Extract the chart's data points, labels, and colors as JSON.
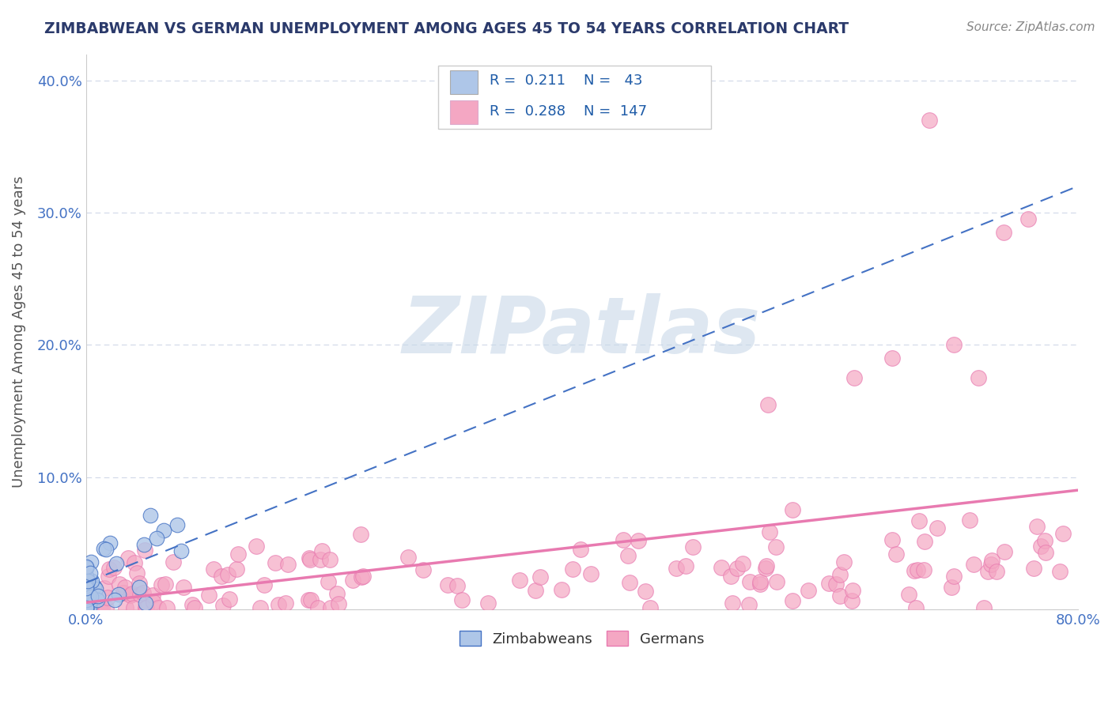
{
  "title": "ZIMBABWEAN VS GERMAN UNEMPLOYMENT AMONG AGES 45 TO 54 YEARS CORRELATION CHART",
  "source": "Source: ZipAtlas.com",
  "ylabel": "Unemployment Among Ages 45 to 54 years",
  "xlabel": "",
  "xlim": [
    0.0,
    0.8
  ],
  "ylim": [
    0.0,
    0.42
  ],
  "xticks": [
    0.0,
    0.1,
    0.2,
    0.3,
    0.4,
    0.5,
    0.6,
    0.7,
    0.8
  ],
  "xticklabels": [
    "0.0%",
    "",
    "",
    "",
    "",
    "",
    "",
    "",
    "80.0%"
  ],
  "yticks": [
    0.0,
    0.1,
    0.2,
    0.3,
    0.4
  ],
  "yticklabels": [
    "",
    "10.0%",
    "20.0%",
    "30.0%",
    "40.0%"
  ],
  "zimbabwe_color": "#aec6e8",
  "german_color": "#f4a7c3",
  "zimbabwe_R": 0.211,
  "zimbabwe_N": 43,
  "german_R": 0.288,
  "german_N": 147,
  "watermark": "ZIPatlas",
  "watermark_color": "#c8d8e8",
  "title_color": "#2b3a6b",
  "tick_color": "#4472c4",
  "legend_R_color": "#1f5ca8",
  "background_color": "#ffffff",
  "grid_color": "#d0d8e8",
  "zimbabwe_trendline_color": "#4472c4",
  "german_trendline_color": "#e87ab0",
  "zim_trend_x0": 0.0,
  "zim_trend_y0": 0.02,
  "zim_trend_x1": 0.8,
  "zim_trend_y1": 0.32,
  "ger_trend_x0": 0.0,
  "ger_trend_y0": 0.005,
  "ger_trend_x1": 0.8,
  "ger_trend_y1": 0.09
}
